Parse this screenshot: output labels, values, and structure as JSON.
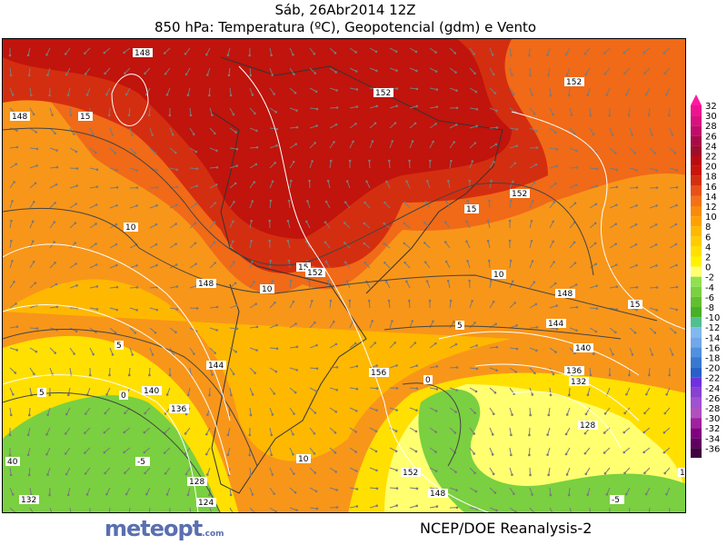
{
  "header": {
    "line1": "Sáb, 26Abr2014 12Z",
    "line2": "850 hPa: Temperatura (ºC), Geopotencial (gdm) e Vento"
  },
  "colorbar": {
    "labels": [
      "32",
      "30",
      "28",
      "26",
      "24",
      "22",
      "20",
      "18",
      "16",
      "14",
      "12",
      "10",
      "8",
      "6",
      "4",
      "2",
      "0",
      "-2",
      "-4",
      "-6",
      "-8",
      "-10",
      "-12",
      "-14",
      "-16",
      "-18",
      "-20",
      "-22",
      "-24",
      "-26",
      "-28",
      "-30",
      "-32",
      "-34",
      "-36"
    ],
    "colors": [
      "#ee1290",
      "#d8107e",
      "#c00c6a",
      "#a80a48",
      "#a00c2c",
      "#b80c10",
      "#c8140c",
      "#d42e10",
      "#e85018",
      "#f47018",
      "#fa8a0a",
      "#ffa000",
      "#ffb800",
      "#ffcc00",
      "#ffe000",
      "#fff200",
      "#ffff70",
      "#90e050",
      "#7ad040",
      "#62c030",
      "#48b028",
      "#50c090",
      "#80b8f0",
      "#70a8e8",
      "#5090e0",
      "#3878d0",
      "#2860c8",
      "#7030e0",
      "#8840d0",
      "#a050d0",
      "#b050c0",
      "#a020a0",
      "#800080",
      "#600060",
      "#400040"
    ],
    "top_arrow_color": "#ff1aa0",
    "bottom_arrow_color": "#380030"
  },
  "map": {
    "temperature_contour_labels": [
      "15",
      "15",
      "10",
      "10",
      "15",
      "10",
      "5",
      "5",
      "0",
      "0",
      "-5",
      "-5",
      "15",
      "10",
      "5"
    ],
    "geopotential_contour_labels": [
      "148",
      "148",
      "152",
      "152",
      "152",
      "148",
      "148",
      "152",
      "144",
      "140",
      "136",
      "128",
      "124",
      "132",
      "156",
      "152",
      "148",
      "144",
      "140",
      "136",
      "132",
      "128",
      "132",
      "40"
    ]
  },
  "footer": {
    "logo": "meteopt",
    "logo_suffix": ".com",
    "source": "NCEP/DOE Reanalysis-2"
  }
}
